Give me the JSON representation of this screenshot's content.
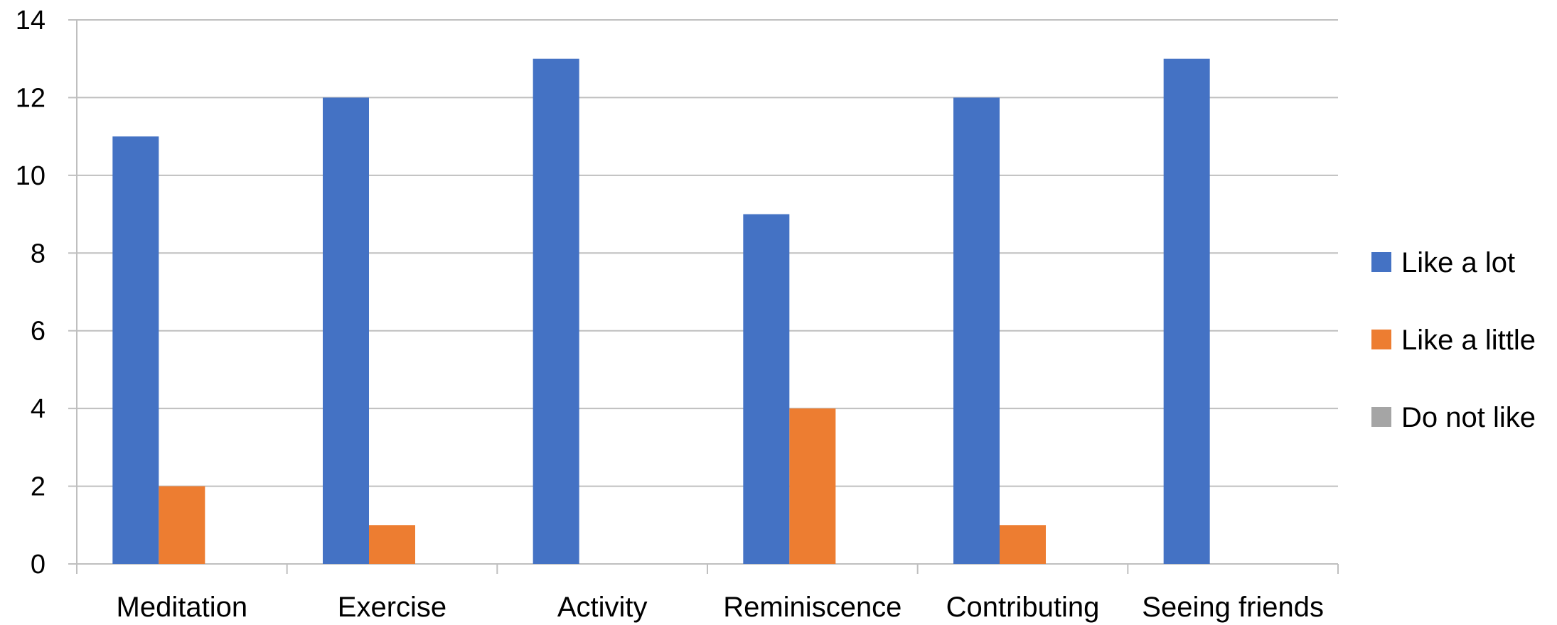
{
  "chart_data": {
    "type": "bar",
    "categories": [
      "Meditation",
      "Exercise",
      "Activity",
      "Reminiscence",
      "Contributing",
      "Seeing friends"
    ],
    "series": [
      {
        "name": "Like a lot",
        "color": "#4472C4",
        "values": [
          11,
          12,
          13,
          9,
          12,
          13
        ]
      },
      {
        "name": "Like a little",
        "color": "#ED7D31",
        "values": [
          2,
          1,
          0,
          4,
          1,
          0
        ]
      },
      {
        "name": "Do not like",
        "color": "#A5A5A5",
        "values": [
          0,
          0,
          0,
          0,
          0,
          0
        ]
      }
    ],
    "yticks": [
      "0",
      "2",
      "4",
      "6",
      "8",
      "10",
      "12",
      "14"
    ],
    "ylim": [
      0,
      14
    ],
    "grid": true,
    "legend_position": "right"
  }
}
